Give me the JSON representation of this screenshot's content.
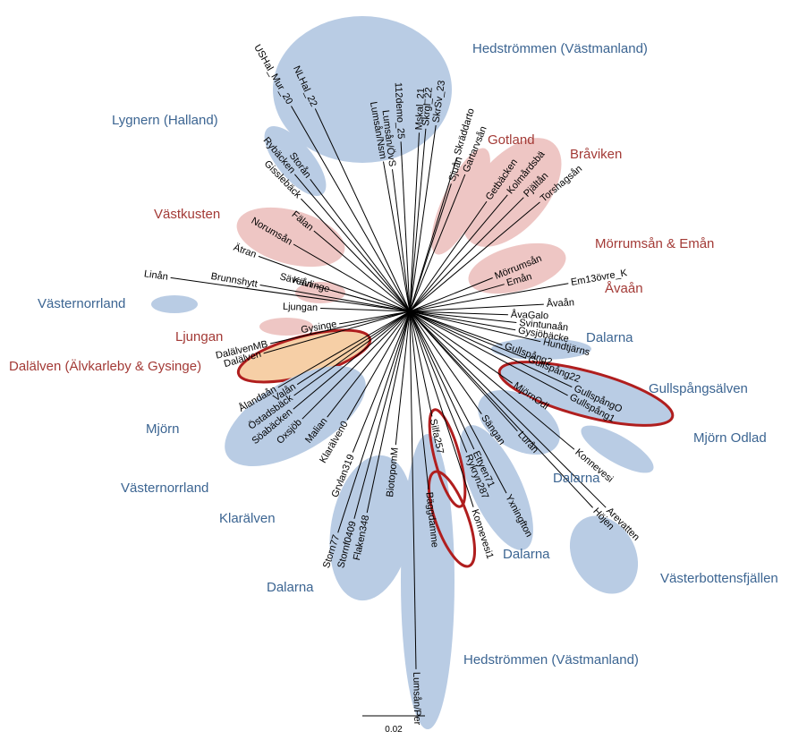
{
  "groups": [
    "Hedströmmen (Västmanland)",
    "Lygnern (Halland)",
    "Gotland",
    "Bråviken",
    "Västkusten",
    "Mörrumsån & Emån",
    "Åvaån",
    "Västernorrland",
    "Ljungan",
    "Dalarna",
    "Dalälven (Älvkarleby & Gysinge)",
    "Gullspångsälven",
    "Mjörn",
    "Mjörn Odlad",
    "Dalarna",
    "Västernorrland",
    "Klarälven",
    "Dalarna",
    "Västerbottensfjällen",
    "Dalarna",
    "Hedströmmen (Västmanland)"
  ],
  "tips": [
    "USHal_Mur_20",
    "NLHal_22",
    "Lumsån/Nsm",
    "Lumsån/ÖvS",
    "112demo_25",
    "Mskal_21",
    "Skrgl_22",
    "SkrSv_23",
    "Skräddarto",
    "Rybäcken",
    "Storån",
    "Gisslebäck",
    "Fälan",
    "Ätran",
    "Norumsån",
    "Säveån",
    "Gartarvsån",
    "Sjuån",
    "Getbäcken",
    "Kolmårdsbä",
    "Pjältån",
    "Torshagsån",
    "Mörrumsån",
    "Emån",
    "Em13övre_K",
    "Åvaån",
    "ÅvaGalo",
    "Svintunaån",
    "Linån",
    "Brunnshytt",
    "Kävlinge",
    "Ljungan",
    "Gysinge",
    "DalälvenMB",
    "Dalälven",
    "Gysjöbäcke",
    "Hundtjärns",
    "Gullspång2",
    "Gullspång22",
    "GullspångO",
    "Gullspång1",
    "MjörnOdl",
    "Konnevesi",
    "Lurån",
    "Sängan",
    "Arevatten",
    "Höjen",
    "Yxningfton",
    "Rykryn287",
    "Ettyen71",
    "Silfa257",
    "Konnevesi1",
    "Bäggdamme",
    "Lumsån/Per",
    "BiotopomM",
    "Flaken348",
    "Stornf0409",
    "Storn77",
    "Grvlan319",
    "Klarälven0",
    "Malian",
    "Oxsjöb",
    "Ålandaån",
    "Valån",
    "Östadsbäck",
    "Söabäcken"
  ],
  "scale_bar": "0.02"
}
